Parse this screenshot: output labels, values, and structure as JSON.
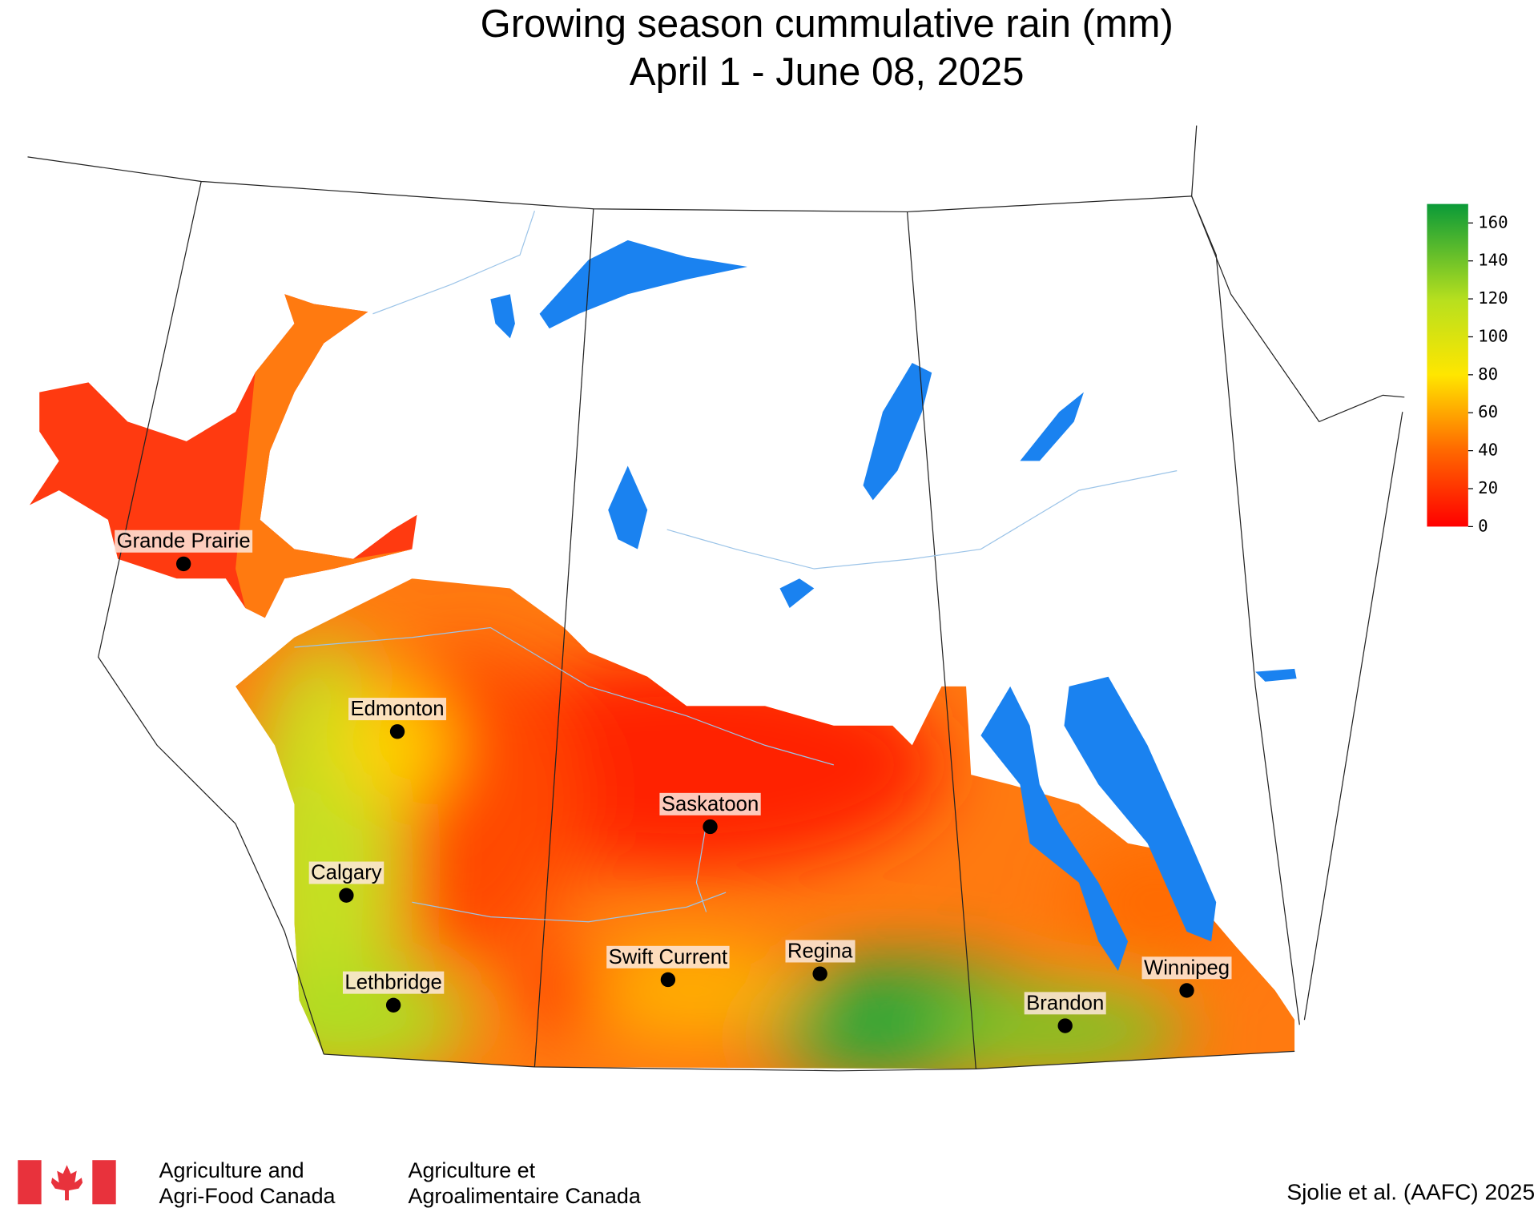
{
  "title": "Growing season cummulative rain (mm)",
  "subtitle": "April 1 - June 08, 2025",
  "legend": {
    "lim": [
      0,
      170
    ],
    "ticks": [
      0,
      20,
      40,
      60,
      80,
      100,
      120,
      140,
      160
    ]
  },
  "cities": [
    "Grande Prairie",
    "Edmonton",
    "Saskatoon",
    "Calgary",
    "Lethbridge",
    "Swift Current",
    "Regina",
    "Winnipeg",
    "Brandon"
  ],
  "footer": {
    "agency_en_1": "Agriculture and",
    "agency_en_2": "Agri-Food Canada",
    "agency_fr_1": "Agriculture et",
    "agency_fr_2": "Agroalimentaire Canada",
    "credit": "Sjolie et al. (AAFC) 2025"
  }
}
